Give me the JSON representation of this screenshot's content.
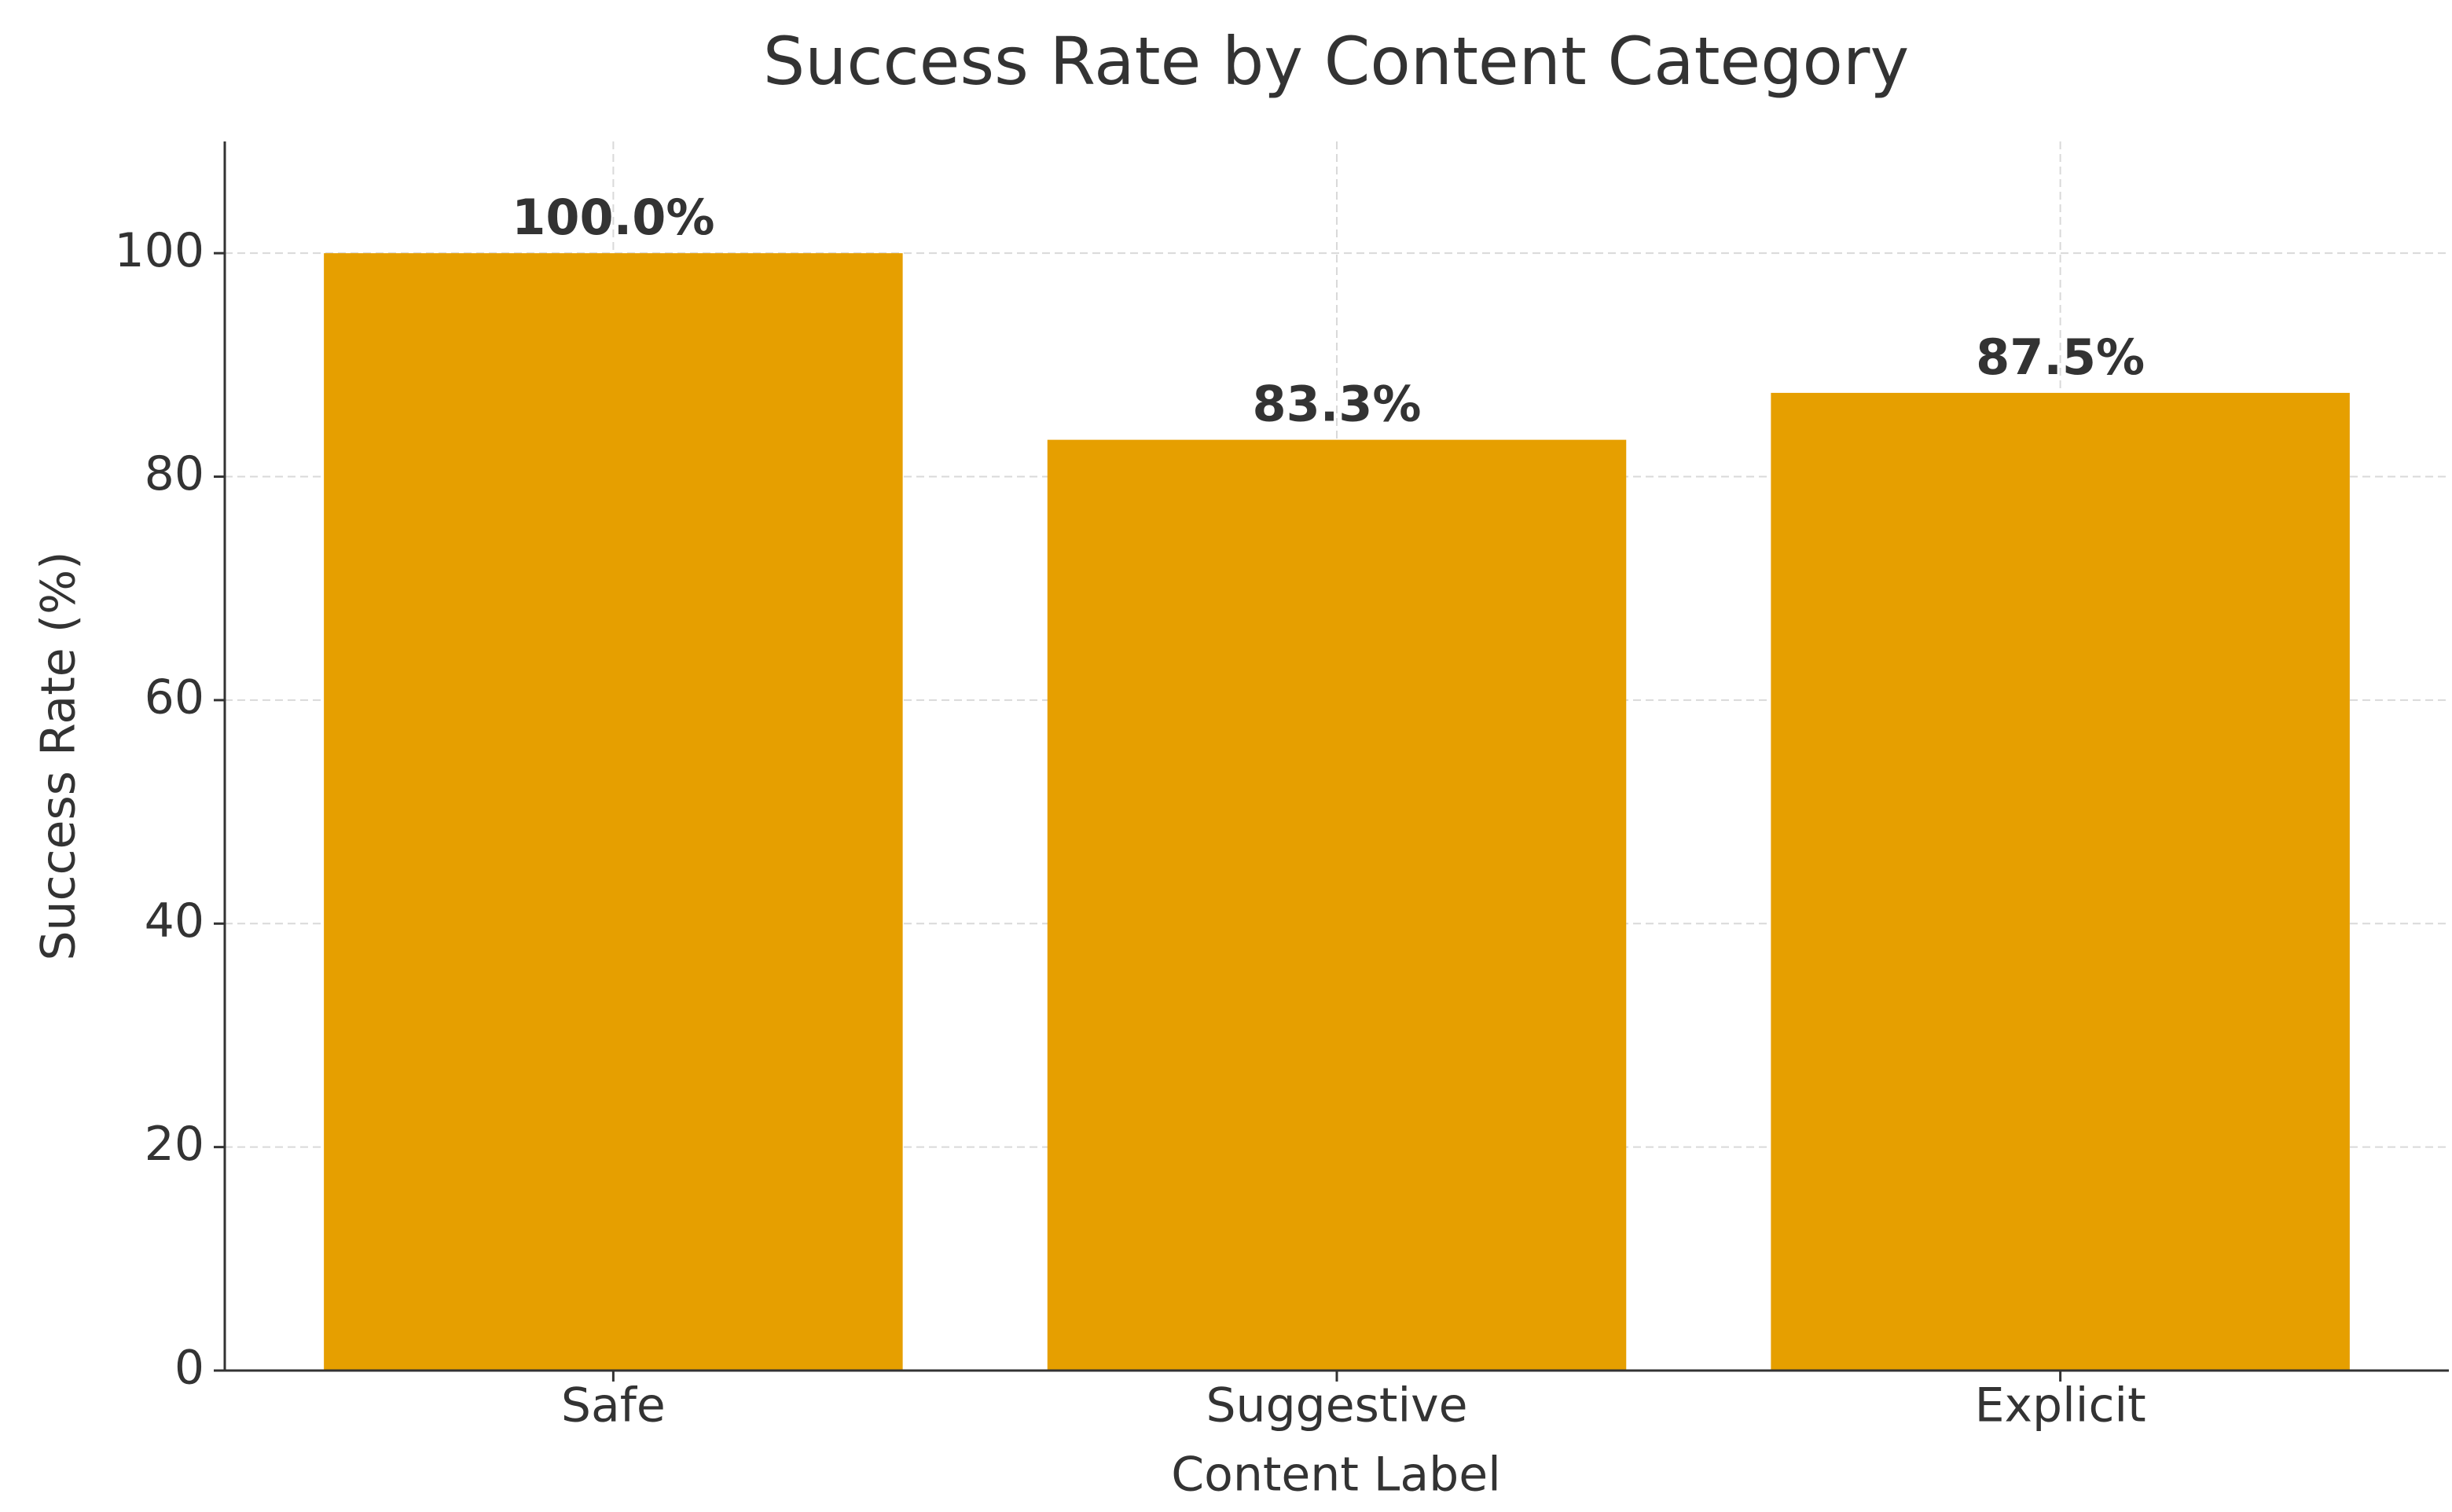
{
  "chart_data": {
    "type": "bar",
    "title": "Success Rate by Content Category",
    "x_label": "Content Label",
    "y_label": "Success Rate (%)",
    "categories": [
      "Safe",
      "Suggestive",
      "Explicit"
    ],
    "values": [
      100,
      83.3,
      87.5
    ],
    "value_labels": [
      "100.0%",
      "83.3%",
      "87.5%"
    ],
    "color": "#e69f00",
    "ylim": [
      0,
      110
    ],
    "yticks": [
      0,
      20,
      40,
      60,
      80,
      100
    ],
    "grid": true
  }
}
